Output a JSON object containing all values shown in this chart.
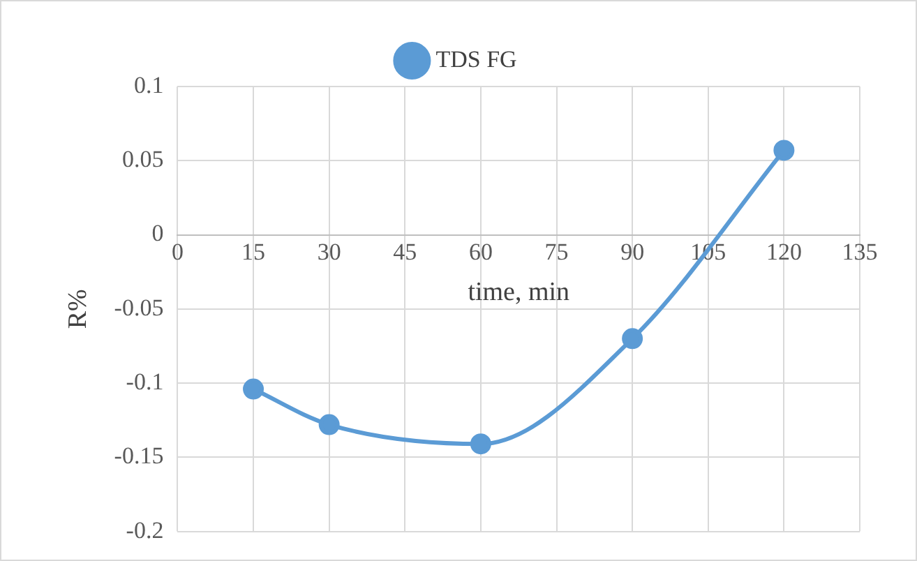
{
  "chart_data": {
    "type": "line",
    "xlabel": "time, min",
    "ylabel": "R%",
    "x": [
      15,
      30,
      60,
      90,
      120
    ],
    "series": [
      {
        "name": "TDS FG",
        "color": "#5b9bd5",
        "values": [
          -0.104,
          -0.128,
          -0.141,
          -0.07,
          0.057
        ]
      }
    ],
    "xlim": [
      0,
      135
    ],
    "xticks": [
      0,
      15,
      30,
      45,
      60,
      75,
      90,
      105,
      120,
      135
    ],
    "ylim": [
      -0.2,
      0.1
    ],
    "yticks": [
      -0.2,
      -0.15,
      -0.1,
      -0.05,
      0,
      0.05,
      0.1
    ],
    "grid": true,
    "legend": "top",
    "marker": "circle",
    "line_style": "solid"
  }
}
